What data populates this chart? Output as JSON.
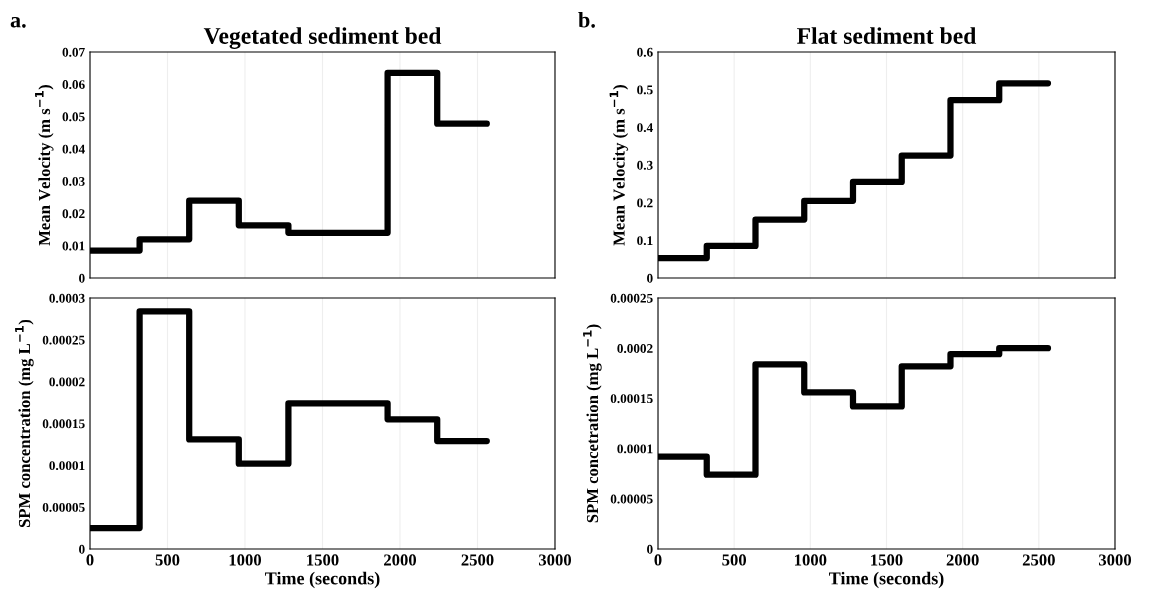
{
  "chart_data": [
    {
      "type": "step",
      "title": "Vegetated sediment bed",
      "ylabel": "Mean Velocity (m s$^{−1}$)",
      "annotations": [
        "a."
      ],
      "x": [
        0,
        320,
        640,
        960,
        1280,
        1920,
        2240,
        2560
      ],
      "series": [
        {
          "color": "#000000",
          "values": [
            0.0085,
            0.012,
            0.024,
            0.0163,
            0.014,
            0.0635,
            0.0478,
            0.0478
          ]
        }
      ],
      "xlim": [
        0,
        3000
      ],
      "xticks": [
        0,
        500,
        1000,
        1500,
        2000,
        2500,
        3000
      ],
      "ylim": [
        0,
        0.07
      ],
      "yticks": [
        0,
        0.01,
        0.02,
        0.03,
        0.04,
        0.05,
        0.06,
        0.07
      ],
      "grid": "x",
      "tick_labels": "y",
      "line_style": "solid"
    },
    {
      "type": "step",
      "title": "Flat sediment bed",
      "ylabel": "Mean Velocity (m s$^{−1}$)",
      "annotations": [
        "b."
      ],
      "x": [
        0,
        320,
        640,
        960,
        1280,
        1600,
        1920,
        2240,
        2560
      ],
      "series": [
        {
          "color": "#000000",
          "values": [
            0.053,
            0.085,
            0.155,
            0.205,
            0.255,
            0.325,
            0.472,
            0.517,
            0.517
          ]
        }
      ],
      "xlim": [
        0,
        3000
      ],
      "xticks": [
        0,
        500,
        1000,
        1500,
        2000,
        2500,
        3000
      ],
      "ylim": [
        0,
        0.6
      ],
      "yticks": [
        0,
        0.1,
        0.2,
        0.3,
        0.4,
        0.5,
        0.6
      ],
      "grid": "x",
      "tick_labels": "y",
      "line_style": "solid"
    },
    {
      "type": "step",
      "xlabel": "Time (seconds)",
      "ylabel": "SPM concentration (mg L$^{−1}$)",
      "x": [
        0,
        320,
        640,
        960,
        1280,
        1920,
        2240,
        2560
      ],
      "series": [
        {
          "color": "#000000",
          "values": [
            2.5e-05,
            0.000284,
            0.000131,
            0.000102,
            0.000174,
            0.000155,
            0.000129,
            0.000129
          ]
        }
      ],
      "xlim": [
        0,
        3000
      ],
      "xticks": [
        0,
        500,
        1000,
        1500,
        2000,
        2500,
        3000
      ],
      "ylim": [
        0,
        0.0003
      ],
      "yticks": [
        0,
        {
          "value": 5e-05,
          "label": "0.00005"
        },
        {
          "value": 0.0001,
          "label": "0.0001"
        },
        {
          "value": 0.00015,
          "label": "0.00015"
        },
        {
          "value": 0.0002,
          "label": "0.0002"
        },
        {
          "value": 0.00025,
          "label": "0.00025"
        },
        {
          "value": 0.0003,
          "label": "0.0003"
        }
      ],
      "grid": "x",
      "line_style": "solid"
    },
    {
      "type": "step",
      "xlabel": "Time (seconds)",
      "ylabel": "SPM concetration (mg L$^{−1}$)",
      "x": [
        0,
        320,
        640,
        960,
        1280,
        1600,
        1920,
        2240,
        2560
      ],
      "series": [
        {
          "color": "#000000",
          "values": [
            9.2e-05,
            7.4e-05,
            0.000184,
            0.000156,
            0.000142,
            0.000182,
            0.000194,
            0.0002,
            0.0002
          ]
        }
      ],
      "xlim": [
        0,
        3000
      ],
      "xticks": [
        0,
        500,
        1000,
        1500,
        2000,
        2500,
        3000
      ],
      "ylim": [
        0,
        0.00025
      ],
      "yticks": [
        0,
        {
          "value": 5e-05,
          "label": "0.00005"
        },
        {
          "value": 0.0001,
          "label": "0.0001"
        },
        {
          "value": 0.00015,
          "label": "0.00015"
        },
        {
          "value": 0.0002,
          "label": "0.0002"
        },
        {
          "value": 0.00025,
          "label": "0.00025"
        }
      ],
      "grid": "x",
      "line_style": "solid"
    }
  ]
}
